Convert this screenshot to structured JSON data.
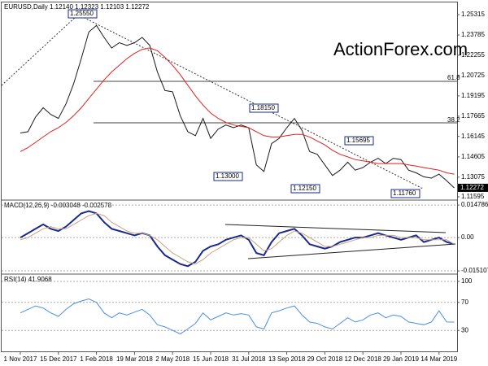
{
  "chart_data": [
    {
      "type": "line",
      "title": "EURUSD,Daily  1.12140 1.12323 1.12103 1.12272",
      "watermark": "ActionForex.com",
      "last_label": "1.12272",
      "annotations": [
        "1.25550",
        "1.18150",
        "1.13000",
        "1.12150",
        "1.15695",
        "1.11760",
        "61.8",
        "38.2"
      ],
      "categories": [
        "1 Nov 2017",
        null,
        null,
        null,
        null,
        "15 Dec 2017",
        null,
        null,
        null,
        null,
        "1 Feb 2018",
        null,
        null,
        null,
        null,
        "19 Mar 2018",
        null,
        null,
        null,
        null,
        "2 May 2018",
        null,
        null,
        null,
        null,
        "15 Jun 2018",
        null,
        null,
        null,
        null,
        "31 Jul 2018",
        null,
        null,
        null,
        null,
        "13 Sep 2018",
        null,
        null,
        null,
        null,
        "29 Oct 2018",
        null,
        null,
        null,
        null,
        "12 Dec 2018",
        null,
        null,
        null,
        null,
        "29 Jan 2019",
        null,
        null,
        null,
        null,
        "14 Mar 2019",
        null,
        null
      ],
      "series": [
        {
          "color": "#1a1a1a",
          "values": [
            1.164,
            1.165,
            1.176,
            1.183,
            1.178,
            1.175,
            1.186,
            1.201,
            1.22,
            1.24,
            1.245,
            1.236,
            1.228,
            1.232,
            1.23,
            1.232,
            1.236,
            1.23,
            1.21,
            1.196,
            1.195,
            1.177,
            1.165,
            1.162,
            1.175,
            1.16,
            1.167,
            1.17,
            1.168,
            1.17,
            1.168,
            1.14,
            1.135,
            1.156,
            1.16,
            1.168,
            1.175,
            1.166,
            1.15,
            1.148,
            1.14,
            1.132,
            1.136,
            1.142,
            1.136,
            1.138,
            1.142,
            1.145,
            1.141,
            1.145,
            1.144,
            1.136,
            1.134,
            1.131,
            1.13,
            1.133,
            1.128,
            1.1227
          ]
        },
        {
          "color": "#e02020",
          "values": [
            1.15,
            1.153,
            1.157,
            1.161,
            1.165,
            1.168,
            1.172,
            1.177,
            1.183,
            1.19,
            1.197,
            1.204,
            1.21,
            1.215,
            1.22,
            1.224,
            1.227,
            1.228,
            1.226,
            1.221,
            1.215,
            1.208,
            1.2,
            1.192,
            1.185,
            1.179,
            1.175,
            1.172,
            1.17,
            1.169,
            1.168,
            1.165,
            1.162,
            1.161,
            1.161,
            1.162,
            1.163,
            1.163,
            1.161,
            1.158,
            1.155,
            1.151,
            1.148,
            1.146,
            1.144,
            1.143,
            1.142,
            1.141,
            1.141,
            1.141,
            1.141,
            1.14,
            1.139,
            1.138,
            1.137,
            1.136,
            1.134,
            1.133
          ]
        }
      ],
      "ylim": [
        1.1141,
        1.2611
      ],
      "yticks": [
        1.25315,
        1.23785,
        1.22255,
        1.20725,
        1.19195,
        1.17665,
        1.16145,
        1.14605,
        1.13075,
        1.11595
      ]
    },
    {
      "type": "line",
      "title": "MACD(12,26,9) -0.003048 -0.002578",
      "series": [
        {
          "color": "#1a2a8c",
          "values": [
            0.0,
            0.002,
            0.004,
            0.006,
            0.004,
            0.003,
            0.005,
            0.008,
            0.011,
            0.012,
            0.011,
            0.007,
            0.004,
            0.003,
            0.002,
            0.001,
            0.002,
            0.001,
            -0.004,
            -0.008,
            -0.01,
            -0.012,
            -0.013,
            -0.011,
            -0.006,
            -0.004,
            -0.003,
            -0.001,
            0.0,
            0.001,
            -0.001,
            -0.007,
            -0.008,
            -0.002,
            0.002,
            0.003,
            0.004,
            0.001,
            -0.003,
            -0.004,
            -0.005,
            -0.004,
            -0.002,
            -0.001,
            0.0,
            0.0,
            0.001,
            0.002,
            0.001,
            0.0,
            -0.001,
            0.0,
            0.001,
            -0.002,
            -0.001,
            0.0,
            -0.002,
            -0.003
          ]
        },
        {
          "color": "#c9a27e",
          "values": [
            -0.001,
            0.0,
            0.002,
            0.004,
            0.005,
            0.004,
            0.004,
            0.006,
            0.008,
            0.01,
            0.011,
            0.01,
            0.007,
            0.005,
            0.003,
            0.002,
            0.002,
            0.001,
            -0.001,
            -0.004,
            -0.007,
            -0.009,
            -0.011,
            -0.012,
            -0.01,
            -0.007,
            -0.005,
            -0.003,
            -0.001,
            0.0,
            0.0,
            -0.003,
            -0.006,
            -0.005,
            -0.002,
            0.001,
            0.003,
            0.002,
            0.0,
            -0.002,
            -0.004,
            -0.004,
            -0.003,
            -0.002,
            -0.001,
            0.0,
            0.0,
            0.001,
            0.001,
            0.001,
            0.0,
            0.0,
            0.0,
            -0.001,
            -0.001,
            -0.001,
            -0.001,
            -0.003
          ]
        }
      ],
      "ylim": [
        -0.0162,
        0.0163
      ],
      "yticks": [
        0.014786,
        {
          "value": 0,
          "label": "0.00"
        },
        -0.015107
      ]
    },
    {
      "type": "line",
      "title": "RSI(14) 41.9068",
      "series": [
        {
          "color": "#4a8fe0",
          "values": [
            55,
            60,
            65,
            62,
            55,
            50,
            60,
            68,
            72,
            75,
            70,
            55,
            48,
            55,
            52,
            56,
            60,
            52,
            38,
            35,
            30,
            25,
            32,
            40,
            55,
            45,
            50,
            55,
            52,
            54,
            52,
            35,
            32,
            55,
            58,
            62,
            65,
            52,
            42,
            40,
            35,
            32,
            40,
            48,
            42,
            45,
            52,
            55,
            48,
            52,
            50,
            42,
            40,
            38,
            42,
            58,
            42,
            41.9
          ]
        }
      ],
      "ylim": [
        0,
        100
      ],
      "yticks": [
        100,
        70,
        30
      ]
    }
  ]
}
